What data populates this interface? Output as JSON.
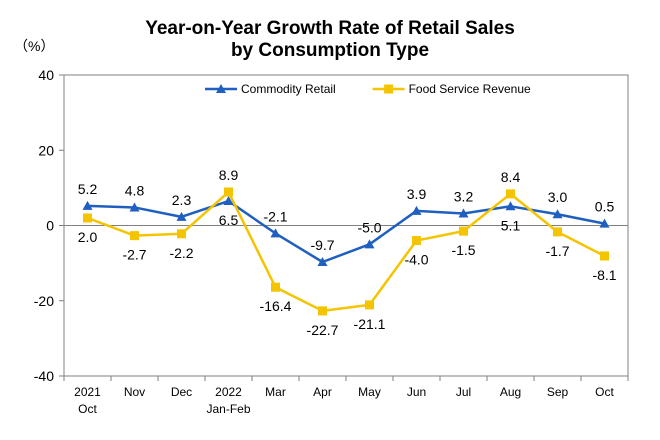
{
  "chart_data": {
    "type": "line",
    "title_line1": "Year-on-Year Growth Rate of Retail Sales",
    "title_line2": "by Consumption Type",
    "unit_label": "（%）",
    "categories": [
      [
        "2021",
        "Oct"
      ],
      [
        "Nov"
      ],
      [
        "Dec"
      ],
      [
        "2022",
        "Jan-Feb"
      ],
      [
        "Mar"
      ],
      [
        "Apr"
      ],
      [
        "May"
      ],
      [
        "Jun"
      ],
      [
        "Jul"
      ],
      [
        "Aug"
      ],
      [
        "Sep"
      ],
      [
        "Oct"
      ]
    ],
    "yticks": [
      "40",
      "20",
      "0",
      "-20",
      "-40"
    ],
    "ylim": [
      -40,
      40
    ],
    "grid": false,
    "legend_position": "top",
    "series": [
      {
        "name": "Commodity Retail",
        "color": "#1f5fbf",
        "marker": "triangle",
        "values": [
          5.2,
          4.8,
          2.3,
          6.5,
          -2.1,
          -9.7,
          -5.0,
          3.9,
          3.2,
          5.1,
          3.0,
          0.5
        ],
        "labels": [
          "5.2",
          "4.8",
          "2.3",
          "6.5",
          "-2.1",
          "-9.7",
          "-5.0",
          "3.9",
          "3.2",
          "5.1",
          "3.0",
          "0.5"
        ]
      },
      {
        "name": "Food Service Revenue",
        "color": "#f5c400",
        "marker": "square",
        "values": [
          2.0,
          -2.7,
          -2.2,
          8.9,
          -16.4,
          -22.7,
          -21.1,
          -4.0,
          -1.5,
          8.4,
          -1.7,
          -8.1
        ],
        "labels": [
          "2.0",
          "-2.7",
          "-2.2",
          "8.9",
          "-16.4",
          "-22.7",
          "-21.1",
          "-4.0",
          "-1.5",
          "8.4",
          "-1.7",
          "-8.1"
        ]
      }
    ]
  }
}
